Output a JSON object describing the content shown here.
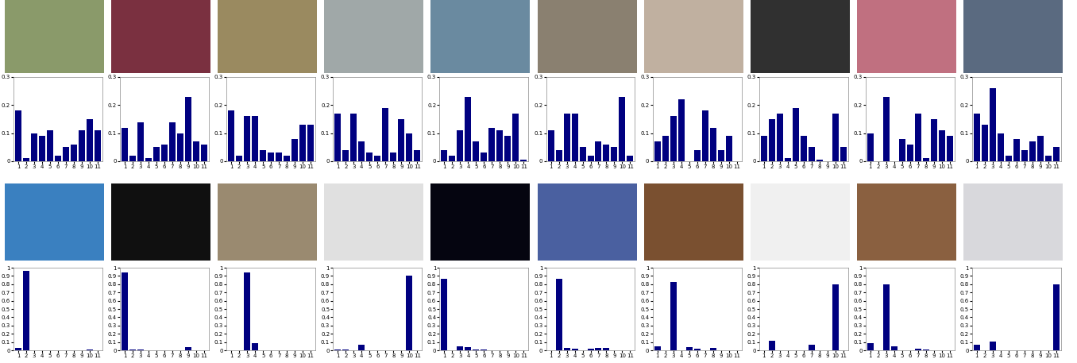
{
  "chart_data": [
    {
      "type": "bar",
      "categories": [
        "1",
        "2",
        "3",
        "4",
        "5",
        "6",
        "7",
        "8",
        "9",
        "10",
        "11"
      ],
      "values": [
        0.18,
        0.01,
        0.1,
        0.09,
        0.11,
        0.02,
        0.05,
        0.06,
        0.11,
        0.15,
        0.11
      ],
      "color": "#000080",
      "ylim": [
        0,
        0.3
      ],
      "yticks": [
        0,
        0.1,
        0.2,
        0.3
      ]
    },
    {
      "type": "bar",
      "categories": [
        "1",
        "2",
        "3",
        "4",
        "5",
        "6",
        "7",
        "8",
        "9",
        "10",
        "11"
      ],
      "values": [
        0.12,
        0.02,
        0.14,
        0.01,
        0.05,
        0.06,
        0.14,
        0.1,
        0.23,
        0.07,
        0.06
      ],
      "color": "#000080",
      "ylim": [
        0,
        0.3
      ],
      "yticks": [
        0,
        0.1,
        0.2,
        0.3
      ]
    },
    {
      "type": "bar",
      "categories": [
        "1",
        "2",
        "3",
        "4",
        "5",
        "6",
        "7",
        "8",
        "9",
        "10",
        "11"
      ],
      "values": [
        0.18,
        0.02,
        0.16,
        0.16,
        0.04,
        0.03,
        0.03,
        0.02,
        0.08,
        0.13,
        0.13
      ],
      "color": "#000080",
      "ylim": [
        0,
        0.3
      ],
      "yticks": [
        0,
        0.1,
        0.2,
        0.3
      ]
    },
    {
      "type": "bar",
      "categories": [
        "1",
        "2",
        "3",
        "4",
        "5",
        "6",
        "7",
        "8",
        "9",
        "10",
        "11"
      ],
      "values": [
        0.17,
        0.04,
        0.17,
        0.07,
        0.03,
        0.02,
        0.19,
        0.03,
        0.15,
        0.1,
        0.04
      ],
      "color": "#000080",
      "ylim": [
        0,
        0.3
      ],
      "yticks": [
        0,
        0.1,
        0.2,
        0.3
      ]
    },
    {
      "type": "bar",
      "categories": [
        "1",
        "2",
        "3",
        "4",
        "5",
        "6",
        "7",
        "8",
        "9",
        "10",
        "11"
      ],
      "values": [
        0.04,
        0.02,
        0.11,
        0.23,
        0.07,
        0.03,
        0.12,
        0.11,
        0.09,
        0.17,
        0.005
      ],
      "color": "#000080",
      "ylim": [
        0,
        0.3
      ],
      "yticks": [
        0,
        0.1,
        0.2,
        0.3
      ]
    },
    {
      "type": "bar",
      "categories": [
        "1",
        "2",
        "3",
        "4",
        "5",
        "6",
        "7",
        "8",
        "9",
        "10",
        "11"
      ],
      "values": [
        0.11,
        0.04,
        0.17,
        0.17,
        0.05,
        0.02,
        0.07,
        0.06,
        0.05,
        0.23,
        0.02
      ],
      "color": "#000080",
      "ylim": [
        0,
        0.3
      ],
      "yticks": [
        0,
        0.1,
        0.2,
        0.3
      ]
    },
    {
      "type": "bar",
      "categories": [
        "1",
        "2",
        "3",
        "4",
        "5",
        "6",
        "7",
        "8",
        "9",
        "10",
        "11"
      ],
      "values": [
        0.07,
        0.09,
        0.16,
        0.22,
        0.0,
        0.04,
        0.18,
        0.12,
        0.04,
        0.09,
        0.0
      ],
      "color": "#000080",
      "ylim": [
        0,
        0.3
      ],
      "yticks": [
        0,
        0.1,
        0.2,
        0.3
      ]
    },
    {
      "type": "bar",
      "categories": [
        "1",
        "2",
        "3",
        "4",
        "5",
        "6",
        "7",
        "8",
        "9",
        "10",
        "11"
      ],
      "values": [
        0.09,
        0.15,
        0.17,
        0.01,
        0.19,
        0.09,
        0.05,
        0.005,
        0.0,
        0.17,
        0.05
      ],
      "color": "#000080",
      "ylim": [
        0,
        0.3
      ],
      "yticks": [
        0,
        0.1,
        0.2,
        0.3
      ]
    },
    {
      "type": "bar",
      "categories": [
        "1",
        "2",
        "3",
        "4",
        "5",
        "6",
        "7",
        "8",
        "9",
        "10",
        "11"
      ],
      "values": [
        0.1,
        0.0,
        0.23,
        0.0,
        0.08,
        0.06,
        0.17,
        0.01,
        0.15,
        0.11,
        0.09
      ],
      "color": "#000080",
      "ylim": [
        0,
        0.3
      ],
      "yticks": [
        0,
        0.1,
        0.2,
        0.3
      ]
    },
    {
      "type": "bar",
      "categories": [
        "1",
        "2",
        "3",
        "4",
        "5",
        "6",
        "7",
        "8",
        "9",
        "10",
        "11"
      ],
      "values": [
        0.17,
        0.13,
        0.26,
        0.1,
        0.02,
        0.08,
        0.04,
        0.07,
        0.09,
        0.02,
        0.05
      ],
      "color": "#000080",
      "ylim": [
        0,
        0.3
      ],
      "yticks": [
        0,
        0.1,
        0.2,
        0.3
      ]
    },
    {
      "type": "bar",
      "categories": [
        "1",
        "2",
        "3",
        "4",
        "5",
        "6",
        "7",
        "8",
        "9",
        "10",
        "11"
      ],
      "values": [
        0.03,
        0.96,
        0,
        0,
        0,
        0,
        0,
        0,
        0,
        0.01,
        0
      ],
      "color": "#000080",
      "ylim": [
        0,
        1
      ],
      "yticks": [
        0,
        0.1,
        0.2,
        0.3,
        0.4,
        0.5,
        0.6,
        0.7,
        0.8,
        0.9,
        1
      ]
    },
    {
      "type": "bar",
      "categories": [
        "1",
        "2",
        "3",
        "4",
        "5",
        "6",
        "7",
        "8",
        "9",
        "10",
        "11"
      ],
      "values": [
        0.94,
        0.01,
        0.01,
        0,
        0,
        0,
        0,
        0,
        0.04,
        0,
        0
      ],
      "color": "#000080",
      "ylim": [
        0,
        1
      ],
      "yticks": [
        0,
        0.1,
        0.2,
        0.3,
        0.4,
        0.5,
        0.6,
        0.7,
        0.8,
        0.9,
        1
      ]
    },
    {
      "type": "bar",
      "categories": [
        "1",
        "2",
        "3",
        "4",
        "5",
        "6",
        "7",
        "8",
        "9",
        "10",
        "11"
      ],
      "values": [
        0,
        0,
        0.94,
        0.09,
        0,
        0,
        0,
        0,
        0,
        0,
        0
      ],
      "color": "#000080",
      "ylim": [
        0,
        1
      ],
      "yticks": [
        0,
        0.1,
        0.2,
        0.3,
        0.4,
        0.5,
        0.6,
        0.7,
        0.8,
        0.9,
        1
      ]
    },
    {
      "type": "bar",
      "categories": [
        "1",
        "2",
        "3",
        "4",
        "5",
        "6",
        "7",
        "8",
        "9",
        "10",
        "11"
      ],
      "values": [
        0.01,
        0.01,
        0,
        0.07,
        0,
        0,
        0,
        0,
        0,
        0.9,
        0
      ],
      "color": "#000080",
      "ylim": [
        0,
        1
      ],
      "yticks": [
        0,
        0.1,
        0.2,
        0.3,
        0.4,
        0.5,
        0.6,
        0.7,
        0.8,
        0.9,
        1
      ]
    },
    {
      "type": "bar",
      "categories": [
        "1",
        "2",
        "3",
        "4",
        "5",
        "6",
        "7",
        "8",
        "9",
        "10",
        "11"
      ],
      "values": [
        0.87,
        0,
        0.05,
        0.04,
        0.01,
        0.01,
        0,
        0,
        0,
        0,
        0
      ],
      "color": "#000080",
      "ylim": [
        0,
        1
      ],
      "yticks": [
        0,
        0.1,
        0.2,
        0.3,
        0.4,
        0.5,
        0.6,
        0.7,
        0.8,
        0.9,
        1
      ]
    },
    {
      "type": "bar",
      "categories": [
        "1",
        "2",
        "3",
        "4",
        "5",
        "6",
        "7",
        "8",
        "9",
        "10",
        "11"
      ],
      "values": [
        0,
        0.87,
        0.03,
        0.02,
        0,
        0.02,
        0.03,
        0.03,
        0,
        0,
        0
      ],
      "color": "#000080",
      "ylim": [
        0,
        1
      ],
      "yticks": [
        0,
        0.1,
        0.2,
        0.3,
        0.4,
        0.5,
        0.6,
        0.7,
        0.8,
        0.9,
        1
      ]
    },
    {
      "type": "bar",
      "categories": [
        "1",
        "2",
        "3",
        "4",
        "5",
        "6",
        "7",
        "8",
        "9",
        "10",
        "11"
      ],
      "values": [
        0.05,
        0,
        0.83,
        0,
        0.04,
        0.02,
        0,
        0.03,
        0,
        0,
        0
      ],
      "color": "#000080",
      "ylim": [
        0,
        1
      ],
      "yticks": [
        0,
        0.1,
        0.2,
        0.3,
        0.4,
        0.5,
        0.6,
        0.7,
        0.8,
        0.9,
        1
      ]
    },
    {
      "type": "bar",
      "categories": [
        "1",
        "2",
        "3",
        "4",
        "5",
        "6",
        "7",
        "8",
        "9",
        "10",
        "11"
      ],
      "values": [
        0,
        0.12,
        0,
        0,
        0,
        0,
        0.07,
        0,
        0,
        0.8,
        0
      ],
      "color": "#000080",
      "ylim": [
        0,
        1
      ],
      "yticks": [
        0,
        0.1,
        0.2,
        0.3,
        0.4,
        0.5,
        0.6,
        0.7,
        0.8,
        0.9,
        1
      ]
    },
    {
      "type": "bar",
      "categories": [
        "1",
        "2",
        "3",
        "4",
        "5",
        "6",
        "7",
        "8",
        "9",
        "10",
        "11"
      ],
      "values": [
        0.09,
        0,
        0.8,
        0.05,
        0,
        0,
        0.02,
        0.01,
        0,
        0,
        0
      ],
      "color": "#000080",
      "ylim": [
        0,
        1
      ],
      "yticks": [
        0,
        0.1,
        0.2,
        0.3,
        0.4,
        0.5,
        0.6,
        0.7,
        0.8,
        0.9,
        1
      ]
    },
    {
      "type": "bar",
      "categories": [
        "1",
        "2",
        "3",
        "4",
        "5",
        "6",
        "7",
        "8",
        "9",
        "10",
        "11"
      ],
      "values": [
        0.07,
        0,
        0.11,
        0,
        0,
        0,
        0,
        0,
        0,
        0,
        0.8
      ],
      "color": "#000080",
      "ylim": [
        0,
        1
      ],
      "yticks": [
        0,
        0.1,
        0.2,
        0.3,
        0.4,
        0.5,
        0.6,
        0.7,
        0.8,
        0.9,
        1
      ]
    }
  ]
}
